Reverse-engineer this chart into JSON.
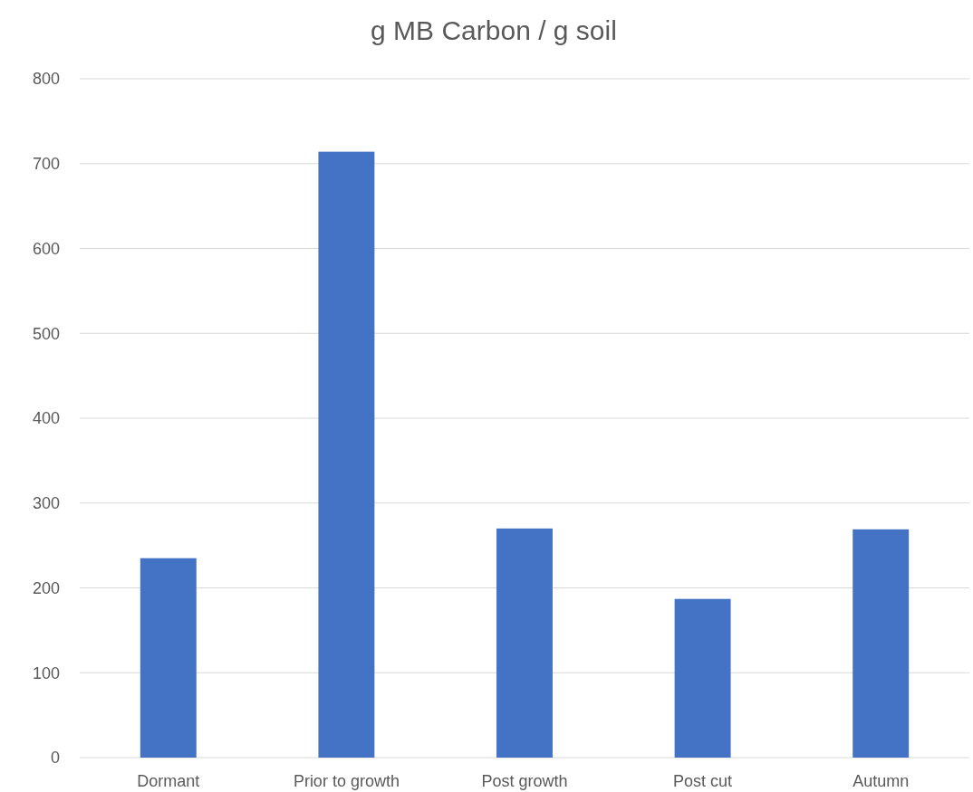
{
  "chart_data": {
    "type": "bar",
    "title": "g MB Carbon / g soil",
    "categories": [
      "Dormant",
      "Prior to growth",
      "Post growth",
      "Post cut",
      "Autumn"
    ],
    "values": [
      235,
      714,
      270,
      187,
      269
    ],
    "color": "#4472c4",
    "ylim": [
      0,
      800
    ],
    "yticks": [
      0,
      100,
      200,
      300,
      400,
      500,
      600,
      700,
      800
    ],
    "grid": "y"
  }
}
